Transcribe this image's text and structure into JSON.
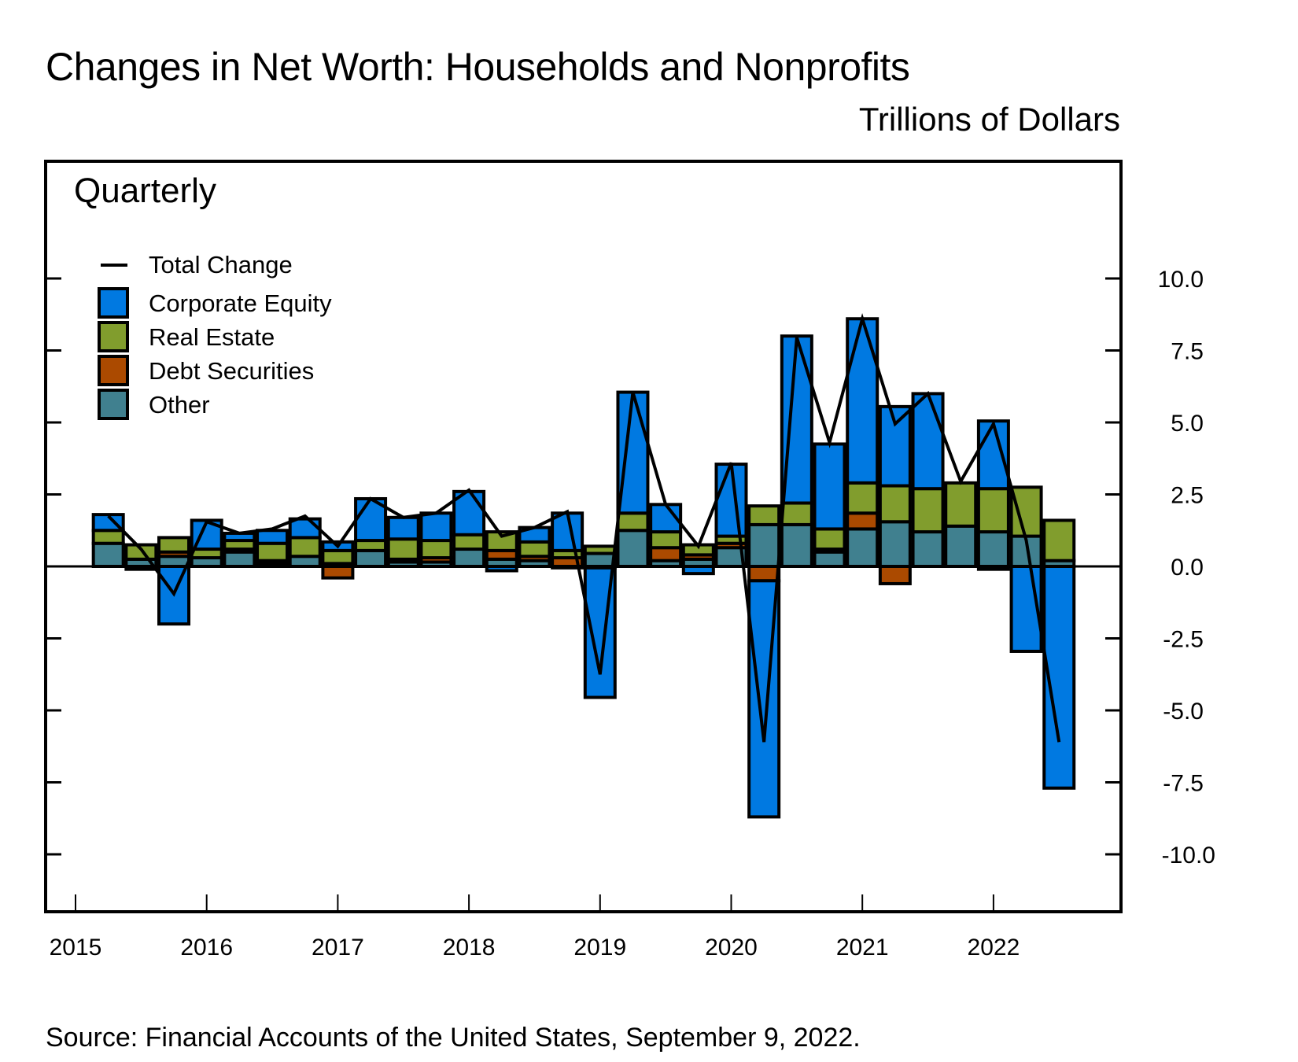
{
  "chart_data": {
    "type": "bar",
    "subtype": "stacked-bar-with-line",
    "title": "Changes in Net Worth: Households and Nonprofits",
    "units_label": "Trillions of Dollars",
    "panel_label": "Quarterly",
    "source": "Source: Financial Accounts of the United States, September 9, 2022.",
    "xlabel": "",
    "ylabel": "Trillions of Dollars",
    "ylim": [
      -12.0,
      12.5
    ],
    "y_ticks": [
      10.0,
      7.5,
      5.0,
      2.5,
      0.0,
      -2.5,
      -5.0,
      -7.5,
      -10.0
    ],
    "y_tick_labels": [
      "10.0",
      "7.5",
      "5.0",
      "2.5",
      "0.0",
      "-2.5",
      "-5.0",
      "-7.5",
      "-10.0"
    ],
    "x_tick_labels": [
      "2015",
      "2016",
      "2017",
      "2018",
      "2019",
      "2020",
      "2021",
      "2022"
    ],
    "legend_position": "top-left",
    "categories": [
      "2015Q1",
      "2015Q2",
      "2015Q3",
      "2015Q4",
      "2016Q1",
      "2016Q2",
      "2016Q3",
      "2016Q4",
      "2017Q1",
      "2017Q2",
      "2017Q3",
      "2017Q4",
      "2018Q1",
      "2018Q2",
      "2018Q3",
      "2018Q4",
      "2019Q1",
      "2019Q2",
      "2019Q3",
      "2019Q4",
      "2020Q1",
      "2020Q2",
      "2020Q3",
      "2020Q4",
      "2021Q1",
      "2021Q2",
      "2021Q3",
      "2021Q4",
      "2022Q1",
      "2022Q2"
    ],
    "series": [
      {
        "name": "Other",
        "color": "#40808f",
        "values": [
          0.8,
          0.25,
          0.35,
          0.3,
          0.5,
          0.1,
          0.35,
          0.1,
          0.55,
          0.15,
          0.15,
          0.6,
          0.25,
          0.2,
          -0.05,
          0.45,
          1.25,
          0.2,
          0.25,
          0.65,
          1.45,
          1.45,
          0.5,
          1.3,
          1.55,
          1.2,
          1.4,
          1.2,
          1.05,
          0.2
        ]
      },
      {
        "name": "Debt Securities",
        "color": "#ab4a00",
        "values": [
          0.0,
          -0.1,
          0.15,
          0.0,
          0.1,
          0.1,
          0.0,
          -0.4,
          0.0,
          0.1,
          0.15,
          0.0,
          0.3,
          0.15,
          0.3,
          -0.05,
          0.0,
          0.45,
          0.15,
          0.15,
          -0.5,
          0.0,
          0.1,
          0.55,
          -0.6,
          0.0,
          0.0,
          -0.1,
          0.0,
          0.0
        ]
      },
      {
        "name": "Real Estate",
        "color": "#819d2d",
        "values": [
          0.45,
          0.5,
          0.5,
          0.3,
          0.3,
          0.6,
          0.65,
          0.45,
          0.35,
          0.7,
          0.6,
          0.5,
          0.65,
          0.5,
          0.25,
          0.25,
          0.6,
          0.55,
          0.35,
          0.25,
          0.65,
          0.75,
          0.7,
          1.05,
          1.25,
          1.5,
          1.5,
          1.5,
          1.7,
          1.4
        ]
      },
      {
        "name": "Corporate Equity",
        "color": "#0079e1",
        "values": [
          0.55,
          0.0,
          -2.0,
          1.0,
          0.25,
          0.45,
          0.65,
          0.3,
          1.45,
          0.75,
          0.95,
          1.5,
          -0.15,
          0.5,
          1.3,
          -4.5,
          4.2,
          0.95,
          -0.25,
          2.5,
          -8.2,
          5.8,
          2.95,
          5.7,
          2.75,
          3.3,
          0.0,
          2.35,
          -2.95,
          -7.7
        ]
      }
    ],
    "line": {
      "name": "Total Change",
      "color": "#000000",
      "values": [
        1.75,
        0.6,
        -0.95,
        1.55,
        1.15,
        1.3,
        1.75,
        0.7,
        2.35,
        1.7,
        1.85,
        2.65,
        1.05,
        1.35,
        1.9,
        -3.75,
        6.05,
        2.15,
        0.7,
        3.6,
        -6.1,
        7.95,
        4.3,
        8.6,
        4.95,
        6.0,
        2.95,
        4.95,
        0.9,
        -6.1
      ]
    }
  }
}
